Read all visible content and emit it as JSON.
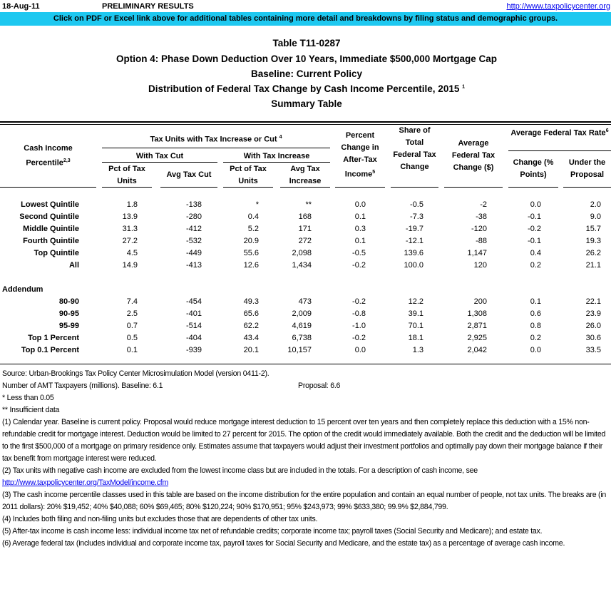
{
  "header": {
    "date": "18-Aug-11",
    "status": "PRELIMINARY RESULTS",
    "site_link": "http://www.taxpolicycenter.org",
    "banner": "Click on PDF or Excel link above for additional tables containing more detail and breakdowns by filing status and demographic groups.",
    "banner_color": "#1ec8f0"
  },
  "titles": {
    "table_id": "Table T11-0287",
    "option": "Option 4: Phase Down Deduction Over 10 Years, Immediate $500,000 Mortgage Cap",
    "baseline": "Baseline: Current Policy",
    "distribution": "Distribution of Federal Tax Change by Cash Income Percentile, 2015",
    "distribution_sup": "1",
    "summary": "Summary Table"
  },
  "columns": {
    "percentile": "Cash Income Percentile",
    "percentile_sup": "2,3",
    "tax_units_group": "Tax Units with Tax Increase or Cut",
    "tax_units_sup": "4",
    "with_cut": "With Tax Cut",
    "with_increase": "With Tax Increase",
    "pct_units_cut": "Pct of Tax Units",
    "avg_cut": "Avg Tax Cut",
    "pct_units_inc": "Pct of Tax Units",
    "avg_inc": "Avg Tax Increase",
    "pct_change": "Percent Change in After-Tax Income",
    "pct_change_sup": "5",
    "share": "Share of Total Federal Tax Change",
    "avg_change": "Average Federal Tax Change ($)",
    "rate_group": "Average Federal Tax Rate",
    "rate_sup": "6",
    "rate_change": "Change (% Points)",
    "rate_under": "Under the Proposal"
  },
  "rows": [
    [
      "Lowest Quintile",
      "1.8",
      "-138",
      "*",
      "**",
      "0.0",
      "-0.5",
      "-2",
      "0.0",
      "2.0"
    ],
    [
      "Second Quintile",
      "13.9",
      "-280",
      "0.4",
      "168",
      "0.1",
      "-7.3",
      "-38",
      "-0.1",
      "9.0"
    ],
    [
      "Middle Quintile",
      "31.3",
      "-412",
      "5.2",
      "171",
      "0.3",
      "-19.7",
      "-120",
      "-0.2",
      "15.7"
    ],
    [
      "Fourth Quintile",
      "27.2",
      "-532",
      "20.9",
      "272",
      "0.1",
      "-12.1",
      "-88",
      "-0.1",
      "19.3"
    ],
    [
      "Top Quintile",
      "4.5",
      "-449",
      "55.6",
      "2,098",
      "-0.5",
      "139.6",
      "1,147",
      "0.4",
      "26.2"
    ],
    [
      "All",
      "14.9",
      "-413",
      "12.6",
      "1,434",
      "-0.2",
      "100.0",
      "120",
      "0.2",
      "21.1"
    ]
  ],
  "addendum_label": "Addendum",
  "addendum_rows": [
    [
      "80-90",
      "7.4",
      "-454",
      "49.3",
      "473",
      "-0.2",
      "12.2",
      "200",
      "0.1",
      "22.1"
    ],
    [
      "90-95",
      "2.5",
      "-401",
      "65.6",
      "2,009",
      "-0.8",
      "39.1",
      "1,308",
      "0.6",
      "23.9"
    ],
    [
      "95-99",
      "0.7",
      "-514",
      "62.2",
      "4,619",
      "-1.0",
      "70.1",
      "2,871",
      "0.8",
      "26.0"
    ],
    [
      "Top 1 Percent",
      "0.5",
      "-404",
      "43.4",
      "6,738",
      "-0.2",
      "18.1",
      "2,925",
      "0.2",
      "30.6"
    ],
    [
      "Top 0.1 Percent",
      "0.1",
      "-939",
      "20.1",
      "10,157",
      "0.0",
      "1.3",
      "2,042",
      "0.0",
      "33.5"
    ]
  ],
  "notes": {
    "source": "Source: Urban-Brookings Tax Policy Center Microsimulation Model (version 0411-2).",
    "amt_label": "Number of AMT Taxpayers (millions).  Baseline: 6.1",
    "amt_proposal": "Proposal: 6.6",
    "star": "* Less than 0.05",
    "dstar": "** Insufficient data",
    "n1": "(1) Calendar year. Baseline is current policy. Proposal would reduce mortgage interest deduction to 15 percent over ten years and then completely replace this deduction with a 15% non-refundable credit for mortgage interest. Deduction would be limited to 27 percent for 2015. The option of the credit would immediately available. Both the credit and the deduction will be limited to the first $500,000 of a mortgage on primary residence only. Estimates assume that taxpayers would adjust their investment portfolios and optimally pay down their mortgage balance if their tax benefit from mortgage interest were reduced.",
    "n2": "(2) Tax units with negative cash income are excluded from the lowest income class but are included in the totals. For a description of cash income, see",
    "n2_link": "http://www.taxpolicycenter.org/TaxModel/income.cfm",
    "n3": "(3) The cash income percentile classes used in this table are based on the income distribution for the entire population and contain an equal number of people, not tax units. The breaks are (in 2011 dollars): 20% $19,452; 40% $40,088; 60% $69,465; 80% $120,224; 90% $170,951; 95% $243,973; 99% $633,380; 99.9% $2,884,799.",
    "n4": "(4) Includes both filing and non-filing units but excludes those that are dependents of other tax units.",
    "n5": "(5) After-tax income is cash income less: individual income tax net of refundable credits; corporate income tax; payroll taxes (Social Security and Medicare); and estate tax.",
    "n6": "(6) Average federal tax (includes individual and corporate income tax, payroll taxes for Social Security and Medicare, and the estate tax) as a percentage of average cash income."
  }
}
